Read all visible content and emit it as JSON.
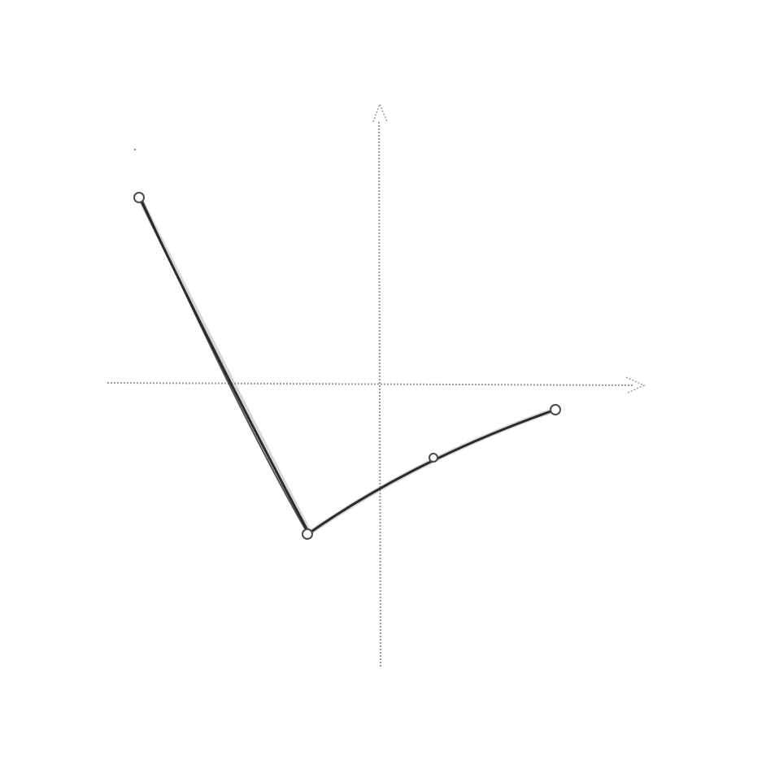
{
  "diagram": {
    "kind": "piecewise-linear-sketch",
    "axes": {
      "x_axis": "horizontal-arrow",
      "y_axis": "vertical-arrow",
      "style": "dotted"
    },
    "points": [
      {
        "label": "",
        "name": "start-point"
      },
      {
        "label": "",
        "name": "vertex-point"
      },
      {
        "label": "",
        "name": "mid-point"
      },
      {
        "label": "",
        "name": "end-point"
      }
    ],
    "colors": {
      "axes": "#9a9a9a",
      "line": "#2b2b2b",
      "point_fill": "#ffffff",
      "point_stroke": "#4a4a4a"
    }
  }
}
